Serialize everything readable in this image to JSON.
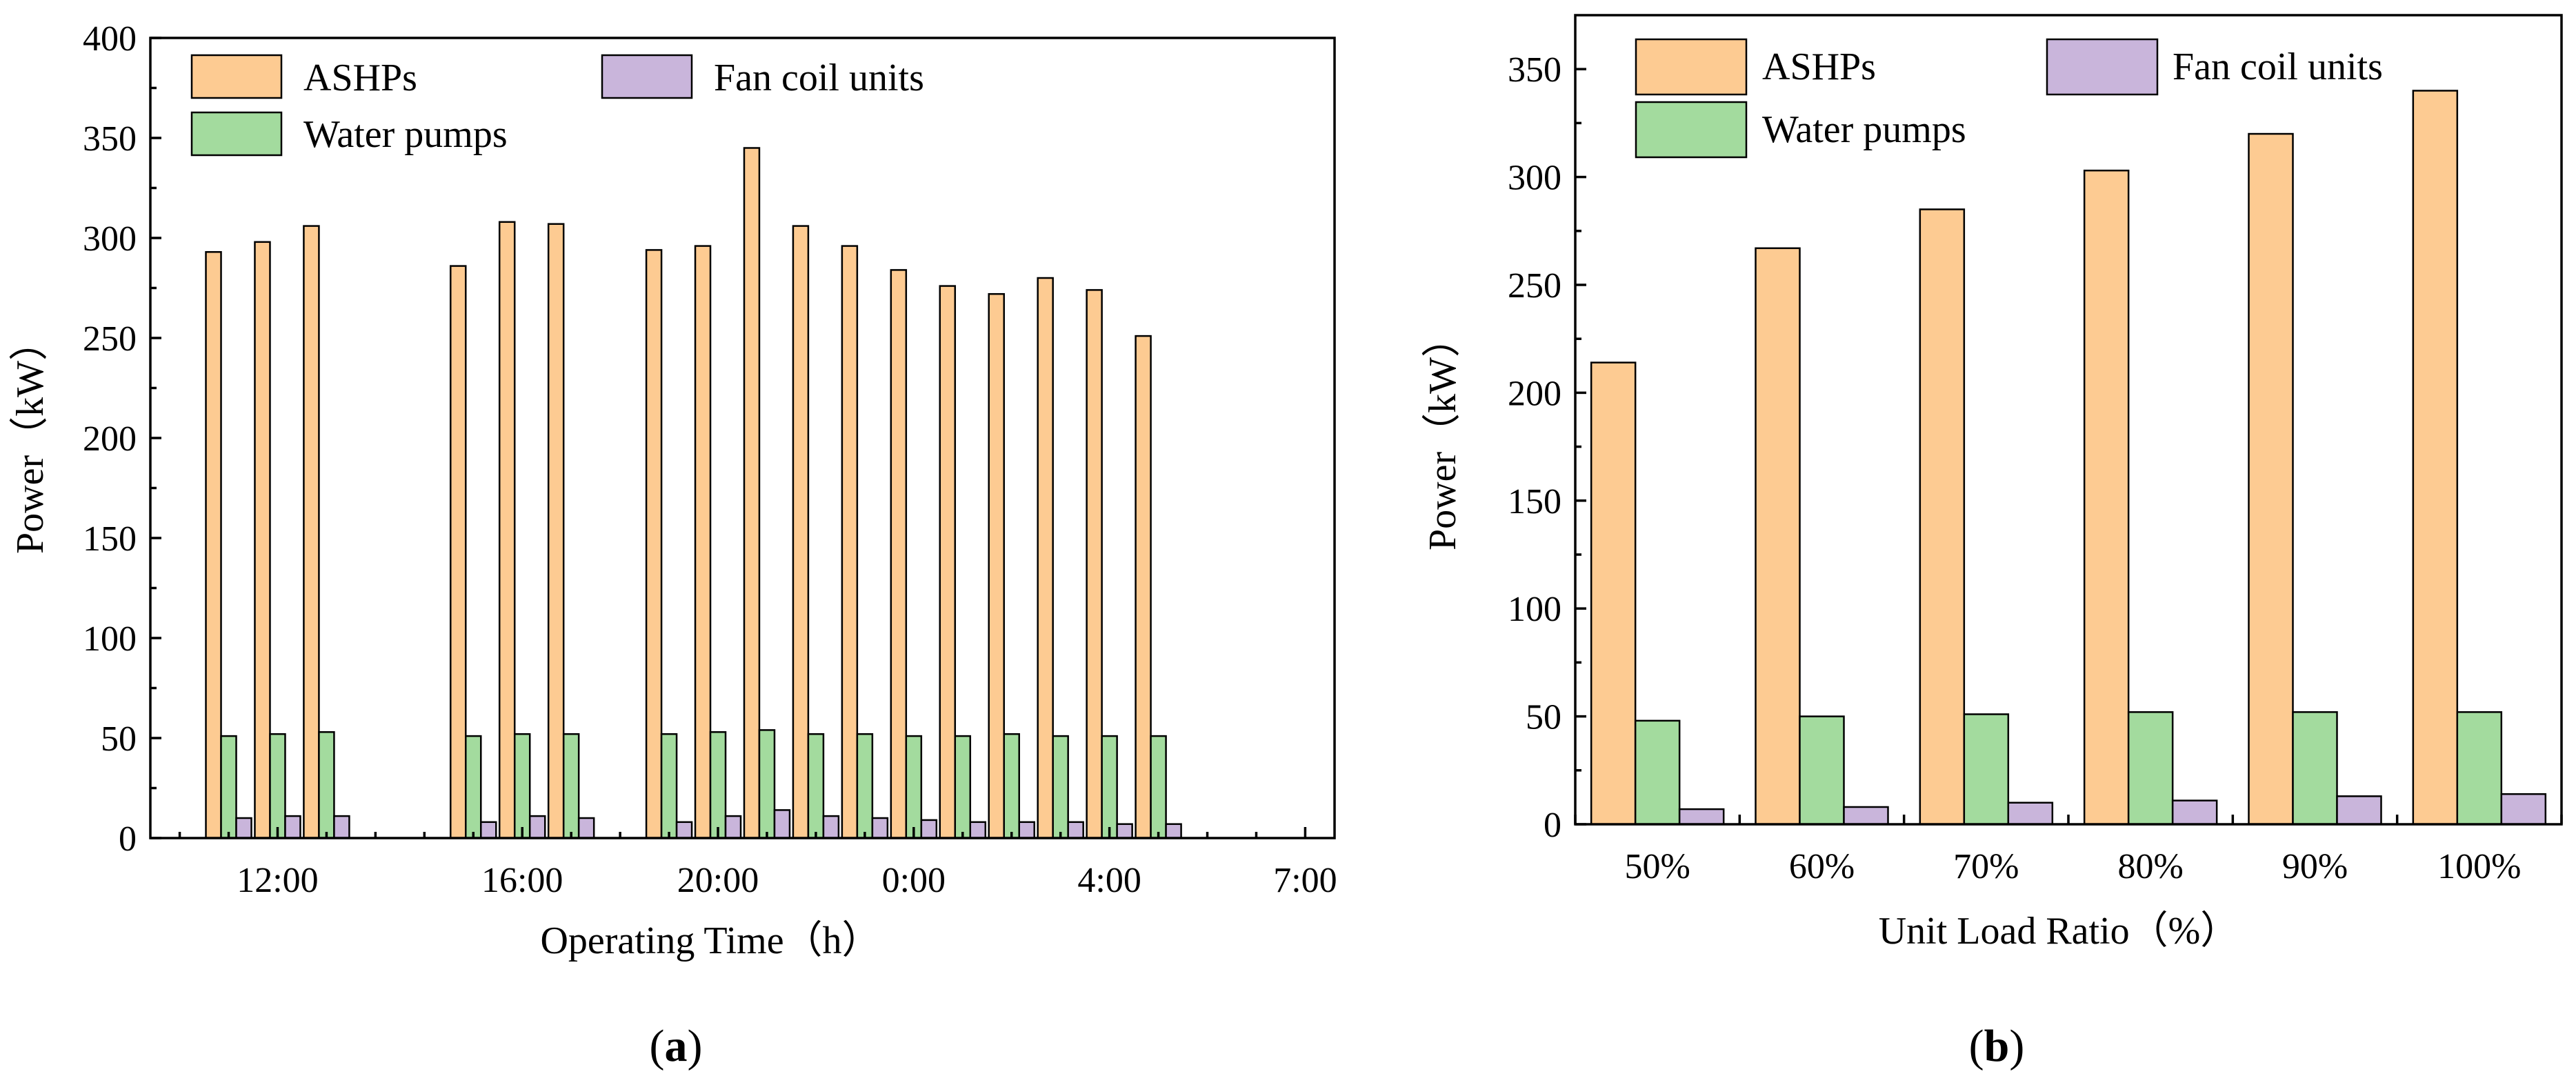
{
  "colors": {
    "ASHPs": "#FDCB92",
    "Water pumps": "#A3DB9E",
    "Fan coil units": "#C9B5DB"
  },
  "chart_data": [
    {
      "panel": "a",
      "panel_label": "a",
      "type": "bar",
      "title": "",
      "xlabel": "Operating Time（h）",
      "ylabel": "Power（kW）",
      "ylim": [
        0,
        400
      ],
      "yticks": [
        "0",
        "50",
        "100",
        "150",
        "200",
        "250",
        "300",
        "350",
        "400"
      ],
      "xtick_labels": [
        "12:00",
        "16:00",
        "20:00",
        "0:00",
        "4:00",
        "7:00"
      ],
      "xtick_positions": [
        2,
        7,
        11,
        15,
        19,
        23
      ],
      "x": [
        1,
        2,
        3,
        6,
        7,
        8,
        10,
        11,
        12,
        13,
        14,
        15,
        16,
        17,
        18,
        19,
        20
      ],
      "xlim": [
        -0.6,
        23.6
      ],
      "legend": {
        "position": "top-left",
        "columns": 2
      },
      "series": [
        {
          "name": "ASHPs",
          "values": [
            293,
            298,
            306,
            286,
            308,
            307,
            294,
            296,
            345,
            306,
            296,
            284,
            276,
            272,
            280,
            274,
            251
          ]
        },
        {
          "name": "Water pumps",
          "values": [
            51,
            52,
            53,
            51,
            52,
            52,
            52,
            53,
            54,
            52,
            52,
            51,
            51,
            52,
            51,
            51,
            51
          ]
        },
        {
          "name": "Fan coil units",
          "values": [
            10,
            11,
            11,
            8,
            11,
            10,
            8,
            11,
            14,
            11,
            10,
            9,
            8,
            8,
            8,
            7,
            7
          ]
        }
      ]
    },
    {
      "panel": "b",
      "panel_label": "b",
      "type": "bar",
      "title": "",
      "xlabel": "Unit Load Ratio（%）",
      "ylabel": "Power（kW）",
      "ylim": [
        0,
        375
      ],
      "yticks": [
        "0",
        "50",
        "100",
        "150",
        "200",
        "250",
        "300",
        "350"
      ],
      "categories": [
        "50%",
        "60%",
        "70%",
        "80%",
        "90%",
        "100%"
      ],
      "legend": {
        "position": "top-left",
        "columns": 2
      },
      "series": [
        {
          "name": "ASHPs",
          "values": [
            214,
            267,
            285,
            303,
            320,
            340
          ]
        },
        {
          "name": "Water pumps",
          "values": [
            48,
            50,
            51,
            52,
            52,
            52
          ]
        },
        {
          "name": "Fan coil units",
          "values": [
            7,
            8,
            10,
            11,
            13,
            14
          ]
        }
      ]
    }
  ]
}
